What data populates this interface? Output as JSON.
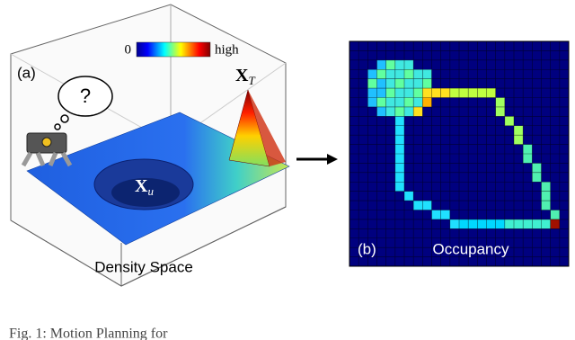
{
  "panel_a": {
    "label": "(a)",
    "colorbar": {
      "min_label": "0",
      "max_label": "high"
    },
    "thought": "?",
    "target": {
      "symbol": "X",
      "subscript": "T"
    },
    "unsafe": {
      "symbol": "X",
      "subscript": "u"
    },
    "title": "Density Space"
  },
  "panel_b": {
    "label": "(b)",
    "title": "Occupancy"
  },
  "caption": "Fig. 1: Motion Planning for"
}
